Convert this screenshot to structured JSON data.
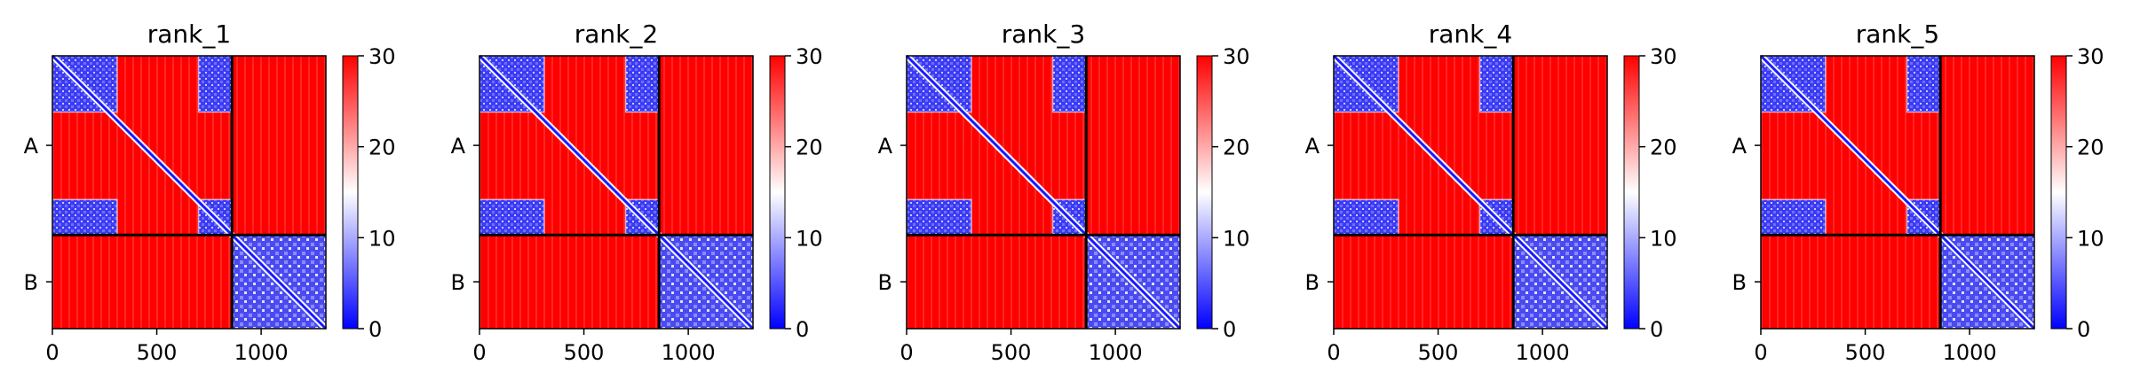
{
  "chart_data": {
    "type": "heatmap",
    "panels": [
      {
        "title": "rank_1"
      },
      {
        "title": "rank_2"
      },
      {
        "title": "rank_3"
      },
      {
        "title": "rank_4"
      },
      {
        "title": "rank_5"
      }
    ],
    "xlim": [
      0,
      1310
    ],
    "x_ticks": [
      0,
      500,
      1000
    ],
    "x_tick_labels": [
      "0",
      "500",
      "1000"
    ],
    "chains": [
      {
        "label": "A",
        "start": 0,
        "end": 860
      },
      {
        "label": "B",
        "start": 860,
        "end": 1310
      }
    ],
    "colorbar": {
      "range": [
        0,
        30
      ],
      "ticks": [
        0,
        10,
        20,
        30
      ],
      "tick_labels": [
        "0",
        "10",
        "20",
        "30"
      ],
      "colormap": [
        "#0000ff",
        "#ffffff",
        "#ff0000"
      ]
    },
    "low_error_blocks": [
      {
        "x": [
          0,
          310
        ],
        "y": [
          0,
          270
        ]
      },
      {
        "x": [
          700,
          860
        ],
        "y": [
          0,
          270
        ]
      },
      {
        "x": [
          0,
          310
        ],
        "y": [
          690,
          860
        ]
      },
      {
        "x": [
          700,
          860
        ],
        "y": [
          690,
          860
        ]
      },
      {
        "x": [
          860,
          1310
        ],
        "y": [
          860,
          1310
        ]
      }
    ],
    "grid": false
  }
}
